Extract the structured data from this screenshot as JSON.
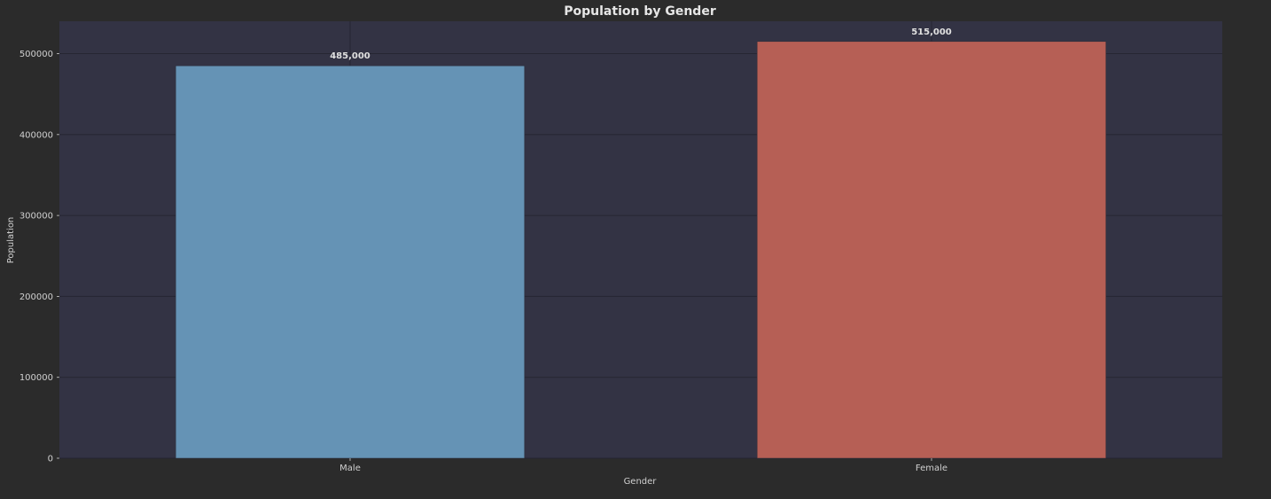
{
  "chart_data": {
    "type": "bar",
    "title": "Population by Gender",
    "xlabel": "Gender",
    "ylabel": "Population",
    "categories": [
      "Male",
      "Female"
    ],
    "values": [
      485000,
      515000
    ],
    "value_labels": [
      "485,000",
      "515,000"
    ],
    "bar_colors": [
      "#6593b5",
      "#b65f55"
    ],
    "ylim": [
      0,
      540000
    ],
    "yticks": [
      0,
      100000,
      200000,
      300000,
      400000,
      500000
    ],
    "ytick_labels": [
      "0",
      "100000",
      "200000",
      "300000",
      "400000",
      "500000"
    ],
    "grid": true,
    "legend": "none",
    "colors": {
      "background": "#2b2b2b",
      "plot_background": "#333344",
      "grid": "#262632"
    }
  }
}
